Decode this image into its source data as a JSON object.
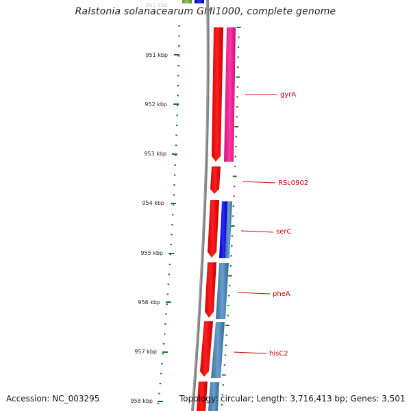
{
  "title": "Ralstonia solanacearum GMI1000, complete genome",
  "accession": "Accession: NC_003295",
  "topology": "Topology: circular; Length: 3,716,413 bp; Genes: 3,501",
  "scale": {
    "unit": "kbp",
    "labels": [
      "950 kbp",
      "951 kbp",
      "952 kbp",
      "953 kbp",
      "954 kbp",
      "955 kbp",
      "956 kbp",
      "957 kbp",
      "958 kbp"
    ],
    "values_kbp": [
      950,
      951,
      952,
      953,
      954,
      955,
      956,
      957,
      958
    ]
  },
  "colors": {
    "backbone": "#808080",
    "ticks": "#1a7a1a",
    "tick_label": "#222222",
    "forward_cds": "#ff0000",
    "reverse_cds_magenta": "#ff1493",
    "reverse_cds_blue": "#0000ff",
    "reverse_cds_steel": "#4682b4",
    "gene_label": "#cc0000",
    "olive": "#7aa63a"
  },
  "genes": [
    {
      "name": "gyrA"
    },
    {
      "name": "RSc0902"
    },
    {
      "name": "serC"
    },
    {
      "name": "pheA"
    },
    {
      "name": "hisC2"
    }
  ]
}
